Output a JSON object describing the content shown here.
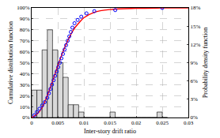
{
  "chart_data": {
    "type": "combo",
    "x_label": "Inter-story drift ratio",
    "y_label": "Cumulative distribution function",
    "y2_label": "Probability density function",
    "xlim": [
      0,
      0.03
    ],
    "xticks": [
      0,
      0.005,
      0.01,
      0.015,
      0.02,
      0.025,
      0.03
    ],
    "ylim": [
      0,
      100
    ],
    "yticks": [
      {
        "value": 0,
        "label": "0%"
      },
      {
        "value": 10,
        "label": "10%"
      },
      {
        "value": 20,
        "label": "20%"
      },
      {
        "value": 30,
        "label": "30%"
      },
      {
        "value": 40,
        "label": "40%"
      },
      {
        "value": 50,
        "label": "50%"
      },
      {
        "value": 60,
        "label": "60%"
      },
      {
        "value": 70,
        "label": "70%"
      },
      {
        "value": 80,
        "label": "80%"
      },
      {
        "value": 90,
        "label": "90%"
      },
      {
        "value": 100,
        "label": "100%"
      }
    ],
    "y2lim": [
      0,
      18
    ],
    "y2ticks": [
      {
        "value": 0,
        "label": "0%"
      },
      {
        "value": 3,
        "label": "3%"
      },
      {
        "value": 6,
        "label": "6%"
      },
      {
        "value": 9,
        "label": "9%"
      },
      {
        "value": 12,
        "label": "12%"
      },
      {
        "value": 15,
        "label": "15%"
      },
      {
        "value": 18,
        "label": "18%"
      }
    ],
    "grid": true,
    "series": [
      {
        "type": "bar",
        "axis": "y2",
        "color": "#d9d9d9",
        "bins": [
          0,
          0.001,
          0.002,
          0.003,
          0.004,
          0.005,
          0.006,
          0.007,
          0.008,
          0.009,
          0.01,
          0.011,
          0.012,
          0.013,
          0.014,
          0.015,
          0.016,
          0.017,
          0.018,
          0.019,
          0.02,
          0.021,
          0.022,
          0.023,
          0.024,
          0.025,
          0.026
        ],
        "values": [
          4.5,
          4.5,
          11.1,
          14.4,
          11.1,
          9,
          6.6,
          2.1,
          2.1,
          0.9,
          0,
          0,
          0,
          0,
          0,
          0.9,
          0,
          0,
          0,
          0,
          0,
          0,
          0,
          0,
          0.9,
          0
        ]
      },
      {
        "type": "line",
        "color": "#ff0000",
        "x": [
          0,
          0.001,
          0.002,
          0.003,
          0.004,
          0.005,
          0.006,
          0.007,
          0.008,
          0.009,
          0.01,
          0.012,
          0.015,
          0.02,
          0.025,
          0.03
        ],
        "values": [
          0,
          3,
          9,
          20,
          33,
          47,
          60,
          71,
          80,
          86,
          91,
          96,
          98.5,
          99.6,
          99.9,
          100
        ]
      },
      {
        "type": "scatter",
        "marker": "circle-open",
        "color": "#0000ff",
        "x": [
          0.0005,
          0.001,
          0.0015,
          0.002,
          0.0025,
          0.003,
          0.0033,
          0.0036,
          0.0039,
          0.0042,
          0.0045,
          0.0048,
          0.0051,
          0.0054,
          0.0057,
          0.006,
          0.0063,
          0.0066,
          0.0069,
          0.0072,
          0.0075,
          0.0078,
          0.0082,
          0.0088,
          0.0095,
          0.0105,
          0.012,
          0.016,
          0.025
        ],
        "values": [
          2,
          5,
          8,
          11,
          14,
          18,
          22,
          26,
          30,
          34,
          38,
          42,
          46,
          50,
          54,
          58,
          62,
          66,
          70,
          74,
          78,
          82,
          86,
          89,
          92,
          95,
          97,
          98,
          100
        ]
      }
    ]
  }
}
